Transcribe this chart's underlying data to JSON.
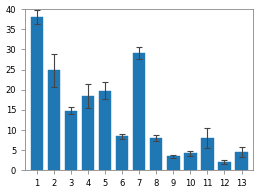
{
  "categories": [
    1,
    2,
    3,
    4,
    5,
    6,
    7,
    8,
    9,
    10,
    11,
    12,
    13
  ],
  "values": [
    38.0,
    24.8,
    14.8,
    18.5,
    19.8,
    8.5,
    29.0,
    8.0,
    3.5,
    4.2,
    8.0,
    2.1,
    4.5
  ],
  "errors": [
    1.8,
    4.0,
    0.8,
    3.0,
    2.0,
    0.6,
    1.5,
    0.8,
    0.4,
    0.6,
    2.5,
    0.5,
    1.2
  ],
  "bar_color": "#1f77b4",
  "error_color": "#444444",
  "ylim": [
    0,
    40
  ],
  "yticks": [
    0,
    5,
    10,
    15,
    20,
    25,
    30,
    35,
    40
  ],
  "xlim": [
    0.3,
    13.7
  ],
  "background_color": "#ffffff",
  "bar_width": 0.72,
  "capsize": 2.5,
  "error_linewidth": 0.8
}
